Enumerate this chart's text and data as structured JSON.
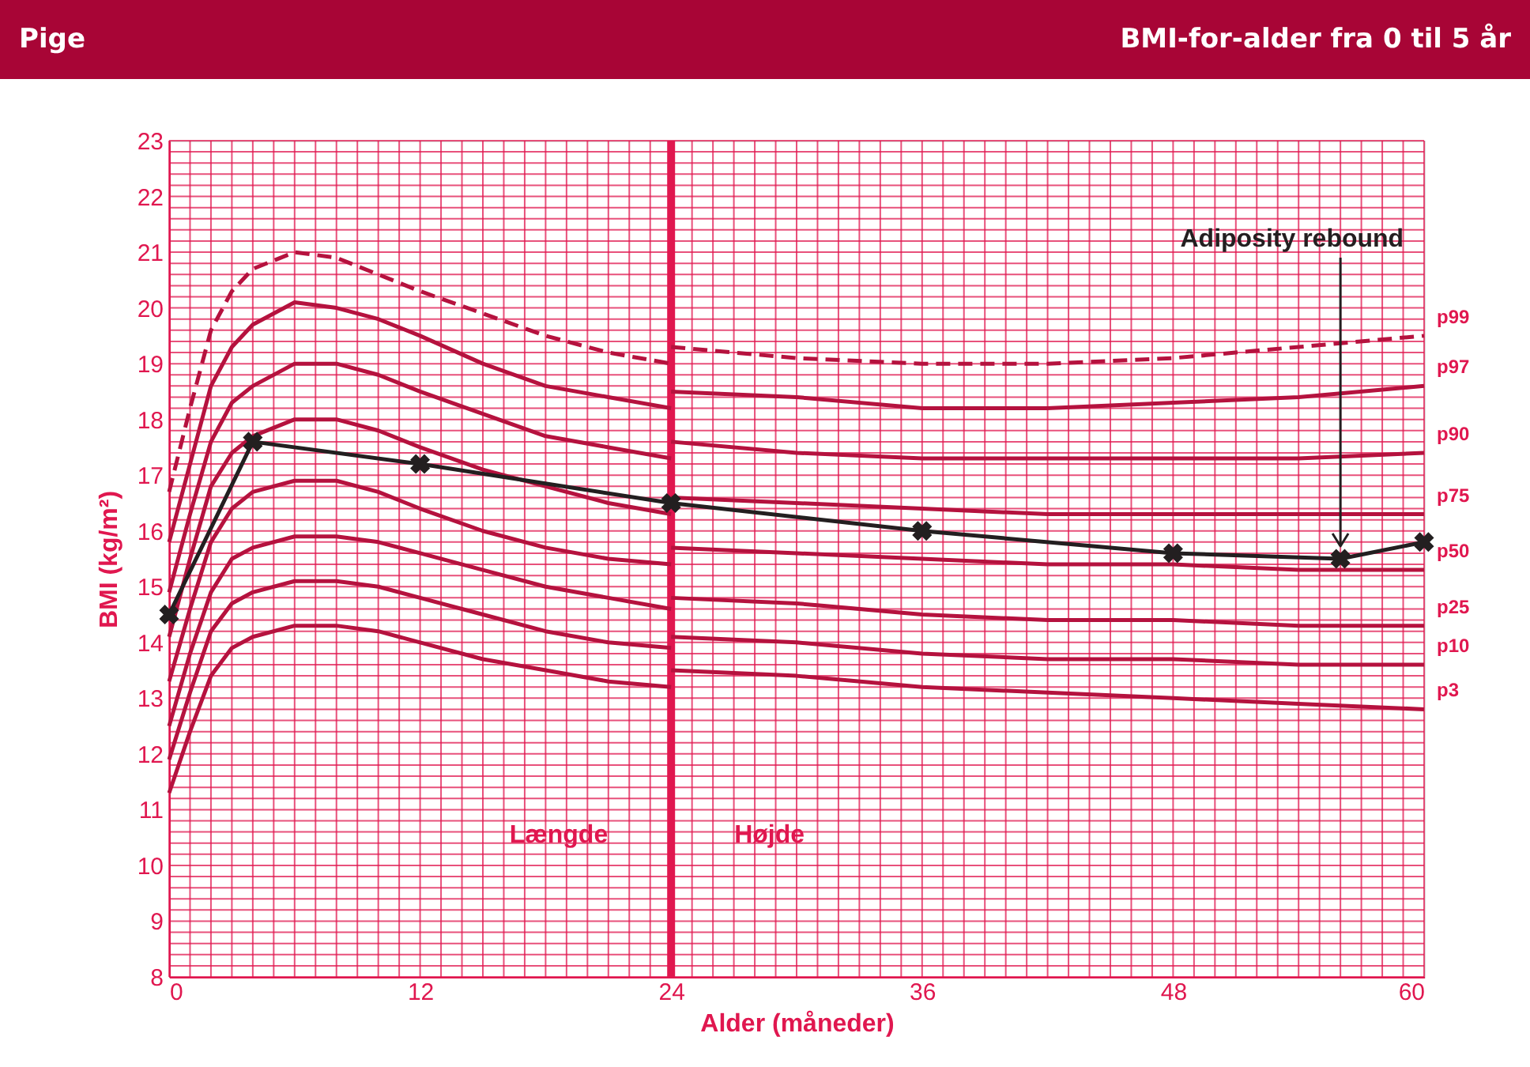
{
  "chart_data": {
    "type": "line",
    "title": "Pige",
    "subtitle": "BMI-for-alder fra 0 til 5 år",
    "xlabel": "Alder (måneder)",
    "ylabel": "BMI (kg/m²)",
    "xlim": [
      0,
      60
    ],
    "ylim": [
      8,
      23
    ],
    "xticks": [
      0,
      {
        "value": 1,
        "label": null
      },
      {
        "value": 2,
        "label": null
      },
      {
        "value": 3,
        "label": null
      },
      {
        "value": 4,
        "label": null
      },
      {
        "value": 5,
        "label": null
      },
      {
        "value": 6,
        "label": null
      },
      {
        "value": 7,
        "label": null
      },
      {
        "value": 8,
        "label": null
      },
      {
        "value": 9,
        "label": null
      },
      {
        "value": 10,
        "label": null
      },
      {
        "value": 11,
        "label": null
      },
      12,
      {
        "value": 13,
        "label": null
      },
      {
        "value": 14,
        "label": null
      },
      {
        "value": 15,
        "label": null
      },
      {
        "value": 16,
        "label": null
      },
      {
        "value": 17,
        "label": null
      },
      {
        "value": 18,
        "label": null
      },
      {
        "value": 19,
        "label": null
      },
      {
        "value": 20,
        "label": null
      },
      {
        "value": 21,
        "label": null
      },
      {
        "value": 22,
        "label": null
      },
      {
        "value": 23,
        "label": null
      },
      24,
      {
        "value": 25,
        "label": null
      },
      {
        "value": 26,
        "label": null
      },
      {
        "value": 27,
        "label": null
      },
      {
        "value": 28,
        "label": null
      },
      {
        "value": 29,
        "label": null
      },
      {
        "value": 30,
        "label": null
      },
      {
        "value": 31,
        "label": null
      },
      {
        "value": 32,
        "label": null
      },
      {
        "value": 33,
        "label": null
      },
      {
        "value": 34,
        "label": null
      },
      {
        "value": 35,
        "label": null
      },
      36,
      {
        "value": 37,
        "label": null
      },
      {
        "value": 38,
        "label": null
      },
      {
        "value": 39,
        "label": null
      },
      {
        "value": 40,
        "label": null
      },
      {
        "value": 41,
        "label": null
      },
      {
        "value": 42,
        "label": null
      },
      {
        "value": 43,
        "label": null
      },
      {
        "value": 44,
        "label": null
      },
      {
        "value": 45,
        "label": null
      },
      {
        "value": 46,
        "label": null
      },
      {
        "value": 47,
        "label": null
      },
      48,
      {
        "value": 49,
        "label": null
      },
      {
        "value": 50,
        "label": null
      },
      {
        "value": 51,
        "label": null
      },
      {
        "value": 52,
        "label": null
      },
      {
        "value": 53,
        "label": null
      },
      {
        "value": 54,
        "label": null
      },
      {
        "value": 55,
        "label": null
      },
      {
        "value": 56,
        "label": null
      },
      {
        "value": 57,
        "label": null
      },
      {
        "value": 58,
        "label": null
      },
      {
        "value": 59,
        "label": null
      },
      60
    ],
    "yticks": [
      8,
      {
        "value": 8.2,
        "label": null
      },
      {
        "value": 8.4,
        "label": null
      },
      {
        "value": 8.6,
        "label": null
      },
      {
        "value": 8.8,
        "label": null
      },
      9,
      {
        "value": 9.2,
        "label": null
      },
      {
        "value": 9.4,
        "label": null
      },
      {
        "value": 9.6,
        "label": null
      },
      {
        "value": 9.8,
        "label": null
      },
      10,
      {
        "value": 10.2,
        "label": null
      },
      {
        "value": 10.4,
        "label": null
      },
      {
        "value": 10.6,
        "label": null
      },
      {
        "value": 10.8,
        "label": null
      },
      11,
      {
        "value": 11.2,
        "label": null
      },
      {
        "value": 11.4,
        "label": null
      },
      {
        "value": 11.6,
        "label": null
      },
      {
        "value": 11.8,
        "label": null
      },
      12,
      {
        "value": 12.2,
        "label": null
      },
      {
        "value": 12.4,
        "label": null
      },
      {
        "value": 12.6,
        "label": null
      },
      {
        "value": 12.8,
        "label": null
      },
      13,
      {
        "value": 13.2,
        "label": null
      },
      {
        "value": 13.4,
        "label": null
      },
      {
        "value": 13.6,
        "label": null
      },
      {
        "value": 13.8,
        "label": null
      },
      14,
      {
        "value": 14.2,
        "label": null
      },
      {
        "value": 14.4,
        "label": null
      },
      {
        "value": 14.6,
        "label": null
      },
      {
        "value": 14.8,
        "label": null
      },
      15,
      {
        "value": 15.2,
        "label": null
      },
      {
        "value": 15.4,
        "label": null
      },
      {
        "value": 15.6,
        "label": null
      },
      {
        "value": 15.8,
        "label": null
      },
      16,
      {
        "value": 16.2,
        "label": null
      },
      {
        "value": 16.4,
        "label": null
      },
      {
        "value": 16.6,
        "label": null
      },
      {
        "value": 16.8,
        "label": null
      },
      17,
      {
        "value": 17.2,
        "label": null
      },
      {
        "value": 17.4,
        "label": null
      },
      {
        "value": 17.6,
        "label": null
      },
      {
        "value": 17.8,
        "label": null
      },
      18,
      {
        "value": 18.2,
        "label": null
      },
      {
        "value": 18.4,
        "label": null
      },
      {
        "value": 18.6,
        "label": null
      },
      {
        "value": 18.8,
        "label": null
      },
      19,
      {
        "value": 19.2,
        "label": null
      },
      {
        "value": 19.4,
        "label": null
      },
      {
        "value": 19.6,
        "label": null
      },
      {
        "value": 19.8,
        "label": null
      },
      20,
      {
        "value": 20.2,
        "label": null
      },
      {
        "value": 20.4,
        "label": null
      },
      {
        "value": 20.6,
        "label": null
      },
      {
        "value": 20.8,
        "label": null
      },
      21,
      {
        "value": 21.2,
        "label": null
      },
      {
        "value": 21.4,
        "label": null
      },
      {
        "value": 21.6,
        "label": null
      },
      {
        "value": 21.8,
        "label": null
      },
      22,
      {
        "value": 22.2,
        "label": null
      },
      {
        "value": 22.4,
        "label": null
      },
      {
        "value": 22.6,
        "label": null
      },
      {
        "value": 22.8,
        "label": null
      },
      23
    ],
    "grid": true,
    "legend": false,
    "line_style": "solid",
    "ref_lines": [
      {
        "axis": "x",
        "value": 24,
        "color": "#e0174f"
      }
    ],
    "annotations": [
      "Længde",
      "Højde",
      {
        "text": "Adiposity rebound",
        "x": 56,
        "y": 15.5
      }
    ],
    "series": [
      {
        "name": "p99",
        "color": "#b5123e",
        "line_style": "dashed",
        "x": [
          0,
          1,
          2,
          3,
          4,
          6,
          8,
          10,
          12,
          15,
          18,
          21,
          24,
          null,
          24,
          30,
          36,
          42,
          48,
          54,
          60
        ],
        "values": [
          16.7,
          18.2,
          19.6,
          20.3,
          20.7,
          21.0,
          20.9,
          20.6,
          20.3,
          19.9,
          19.5,
          19.2,
          19.0,
          null,
          19.3,
          19.1,
          19.0,
          19.0,
          19.1,
          19.3,
          19.5
        ]
      },
      {
        "name": "p97",
        "color": "#b5123e",
        "x": [
          0,
          1,
          2,
          3,
          4,
          6,
          8,
          10,
          12,
          15,
          18,
          21,
          24,
          null,
          24,
          30,
          36,
          42,
          48,
          54,
          60
        ],
        "values": [
          15.8,
          17.2,
          18.6,
          19.3,
          19.7,
          20.1,
          20.0,
          19.8,
          19.5,
          19.0,
          18.6,
          18.4,
          18.2,
          null,
          18.5,
          18.4,
          18.2,
          18.2,
          18.3,
          18.4,
          18.6
        ]
      },
      {
        "name": "p90",
        "color": "#b5123e",
        "x": [
          0,
          1,
          2,
          3,
          4,
          6,
          8,
          10,
          12,
          15,
          18,
          21,
          24,
          null,
          24,
          30,
          36,
          42,
          48,
          54,
          60
        ],
        "values": [
          14.9,
          16.3,
          17.6,
          18.3,
          18.6,
          19.0,
          19.0,
          18.8,
          18.5,
          18.1,
          17.7,
          17.5,
          17.3,
          null,
          17.6,
          17.4,
          17.3,
          17.3,
          17.3,
          17.3,
          17.4
        ]
      },
      {
        "name": "p75",
        "color": "#b5123e",
        "x": [
          0,
          1,
          2,
          3,
          4,
          6,
          8,
          10,
          12,
          15,
          18,
          21,
          24,
          null,
          24,
          30,
          36,
          42,
          48,
          54,
          60
        ],
        "values": [
          14.1,
          15.5,
          16.8,
          17.4,
          17.7,
          18.0,
          18.0,
          17.8,
          17.5,
          17.1,
          16.8,
          16.5,
          16.3,
          null,
          16.6,
          16.5,
          16.4,
          16.3,
          16.3,
          16.3,
          16.3
        ]
      },
      {
        "name": "p50",
        "color": "#b5123e",
        "x": [
          0,
          1,
          2,
          3,
          4,
          6,
          8,
          10,
          12,
          15,
          18,
          21,
          24,
          null,
          24,
          30,
          36,
          42,
          48,
          54,
          60
        ],
        "values": [
          13.3,
          14.6,
          15.8,
          16.4,
          16.7,
          16.9,
          16.9,
          16.7,
          16.4,
          16.0,
          15.7,
          15.5,
          15.4,
          null,
          15.7,
          15.6,
          15.5,
          15.4,
          15.4,
          15.3,
          15.3
        ]
      },
      {
        "name": "p25",
        "color": "#b5123e",
        "x": [
          0,
          1,
          2,
          3,
          4,
          6,
          8,
          10,
          12,
          15,
          18,
          21,
          24,
          null,
          24,
          30,
          36,
          42,
          48,
          54,
          60
        ],
        "values": [
          12.5,
          13.8,
          14.9,
          15.5,
          15.7,
          15.9,
          15.9,
          15.8,
          15.6,
          15.3,
          15.0,
          14.8,
          14.6,
          null,
          14.8,
          14.7,
          14.5,
          14.4,
          14.4,
          14.3,
          14.3
        ]
      },
      {
        "name": "p10",
        "color": "#b5123e",
        "x": [
          0,
          1,
          2,
          3,
          4,
          6,
          8,
          10,
          12,
          15,
          18,
          21,
          24,
          null,
          24,
          30,
          36,
          42,
          48,
          54,
          60
        ],
        "values": [
          11.9,
          13.1,
          14.2,
          14.7,
          14.9,
          15.1,
          15.1,
          15.0,
          14.8,
          14.5,
          14.2,
          14.0,
          13.9,
          null,
          14.1,
          14.0,
          13.8,
          13.7,
          13.7,
          13.6,
          13.6
        ]
      },
      {
        "name": "p3",
        "color": "#b5123e",
        "x": [
          0,
          1,
          2,
          3,
          4,
          6,
          8,
          10,
          12,
          15,
          18,
          21,
          24,
          null,
          24,
          30,
          36,
          42,
          48,
          54,
          60
        ],
        "values": [
          11.3,
          12.4,
          13.4,
          13.9,
          14.1,
          14.3,
          14.3,
          14.2,
          14.0,
          13.7,
          13.5,
          13.3,
          13.2,
          null,
          13.5,
          13.4,
          13.2,
          13.1,
          13.0,
          12.9,
          12.8
        ]
      },
      {
        "color": "#231f20",
        "marker": "cross",
        "x": [
          0,
          4,
          12,
          24,
          36,
          48,
          56,
          60
        ],
        "values": [
          14.5,
          17.6,
          17.2,
          16.5,
          16.0,
          15.6,
          15.5,
          15.8
        ]
      }
    ]
  }
}
